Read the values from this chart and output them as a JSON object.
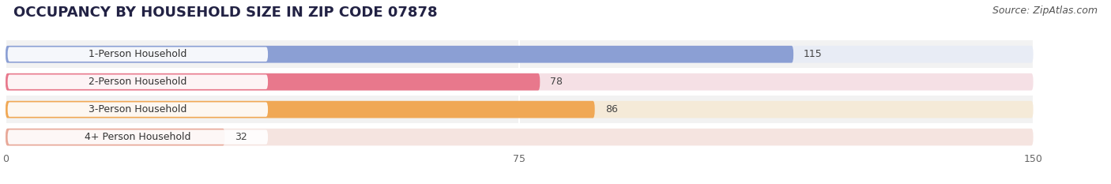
{
  "title": "OCCUPANCY BY HOUSEHOLD SIZE IN ZIP CODE 07878",
  "source": "Source: ZipAtlas.com",
  "categories": [
    "1-Person Household",
    "2-Person Household",
    "3-Person Household",
    "4+ Person Household"
  ],
  "values": [
    115,
    78,
    86,
    32
  ],
  "bar_colors": [
    "#8b9fd4",
    "#e8788c",
    "#f0a855",
    "#e8a898"
  ],
  "bar_bg_colors": [
    "#e8ecf5",
    "#f5e0e5",
    "#f5ead8",
    "#f5e4e0"
  ],
  "label_pill_colors": [
    "#8b9fd4",
    "#e8788c",
    "#f0a855",
    "#e8a898"
  ],
  "xlim": [
    0,
    150
  ],
  "xticks": [
    0,
    75,
    150
  ],
  "background_color": "#ffffff",
  "row_bg_color": "#f2f2f2",
  "title_fontsize": 13,
  "source_fontsize": 9,
  "label_fontsize": 9,
  "value_fontsize": 9
}
